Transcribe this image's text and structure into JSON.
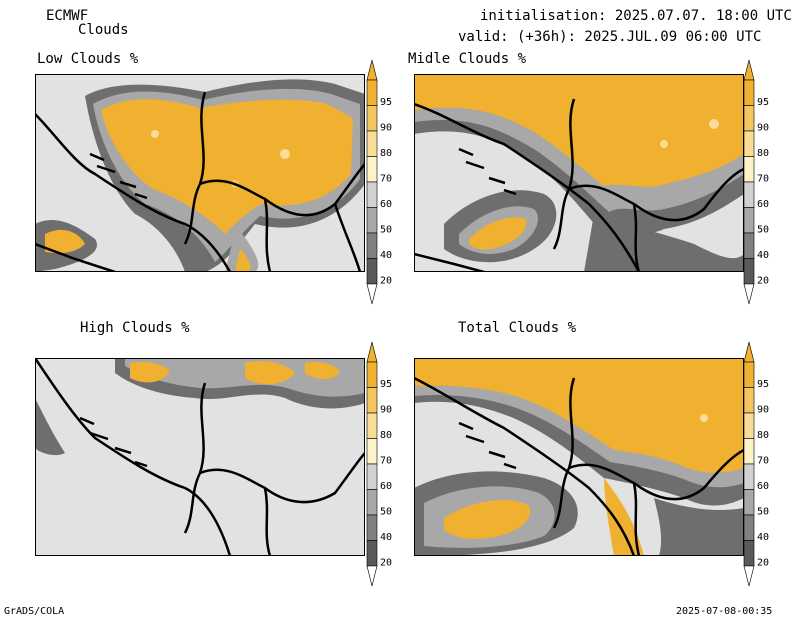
{
  "header": {
    "model": "ECMWF",
    "product": "Clouds",
    "init_line": "initialisation: 2025.07.07. 18:00 UTC",
    "valid_line": "valid: (+36h): 2025.JUL.09 06:00 UTC"
  },
  "panels": [
    {
      "title": "Low Clouds %"
    },
    {
      "title": "Midle Clouds %"
    },
    {
      "title": "High Clouds %"
    },
    {
      "title": "Total Clouds %"
    }
  ],
  "colorbar": {
    "labels": [
      "95",
      "90",
      "80",
      "70",
      "60",
      "50",
      "40",
      "20"
    ],
    "colors": [
      "#f0b030",
      "#f5c560",
      "#f8dc98",
      "#fcf3c8",
      "#d2d2d2",
      "#a8a8a8",
      "#808080",
      "#5a5a5a"
    ]
  },
  "colors": {
    "background_land": "#e2e2e2",
    "cloud_high": "#f0b030",
    "cloud_mid_gray": "#707070"
  },
  "footer": {
    "left": "GrADS/COLA",
    "right": "2025-07-08-00:35"
  }
}
